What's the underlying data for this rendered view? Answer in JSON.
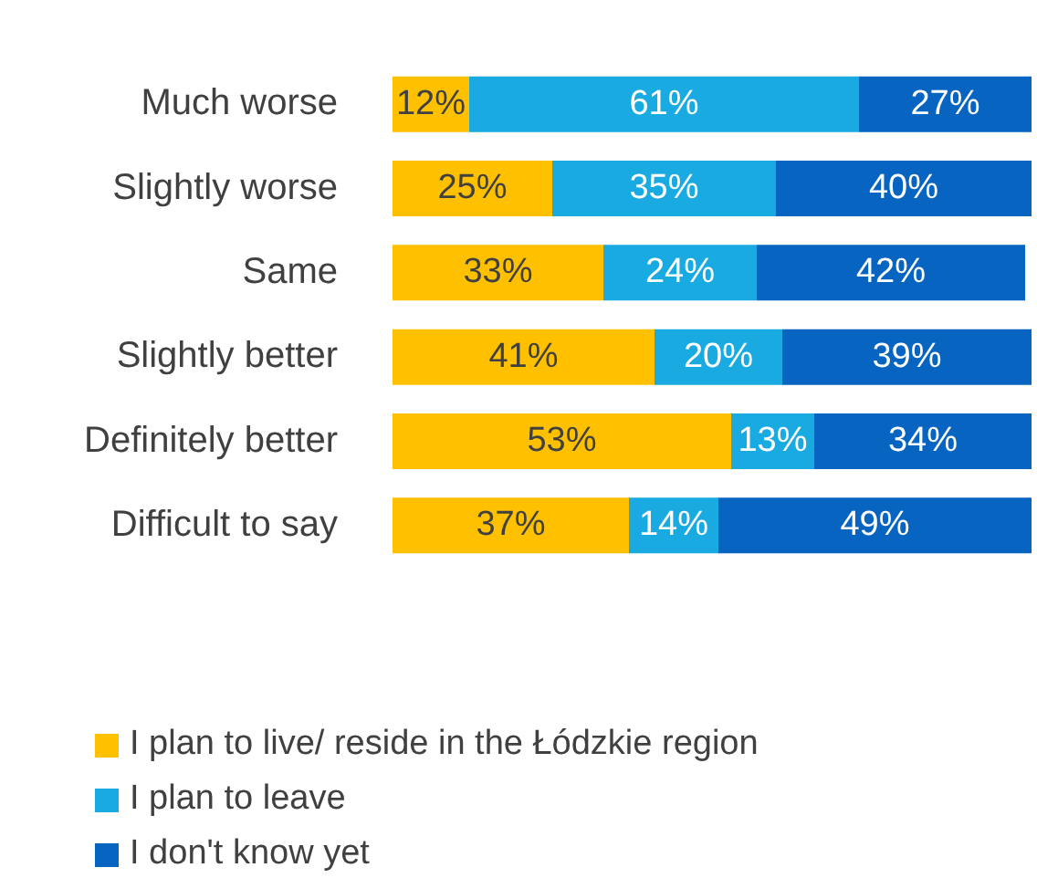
{
  "chart_data": {
    "type": "bar",
    "orientation": "horizontal",
    "stacked": true,
    "legend": "bottom",
    "grid": false,
    "tick_labels": "y",
    "categories": [
      "Much worse",
      "Slightly worse",
      "Same",
      "Slightly better",
      "Definitely better",
      "Difficult to say"
    ],
    "xlim": [
      0,
      100
    ],
    "series": [
      {
        "name": "I plan to live/ reside in the Łódzkie region",
        "color": "#ffc000",
        "values": [
          12,
          25,
          33,
          41,
          53,
          37
        ],
        "value_labels": [
          "12%",
          "25%",
          "33%",
          "41%",
          "53%",
          "37%"
        ]
      },
      {
        "name": "I plan to leave",
        "color": "#1aaae2",
        "values": [
          61,
          35,
          24,
          20,
          13,
          14
        ],
        "value_labels": [
          "61%",
          "35%",
          "24%",
          "20%",
          "13%",
          "14%"
        ]
      },
      {
        "name": "I don't know yet",
        "color": "#0764c0",
        "values": [
          27,
          40,
          42,
          39,
          34,
          49
        ],
        "value_labels": [
          "27%",
          "40%",
          "42%",
          "39%",
          "34%",
          "49%"
        ]
      }
    ]
  }
}
